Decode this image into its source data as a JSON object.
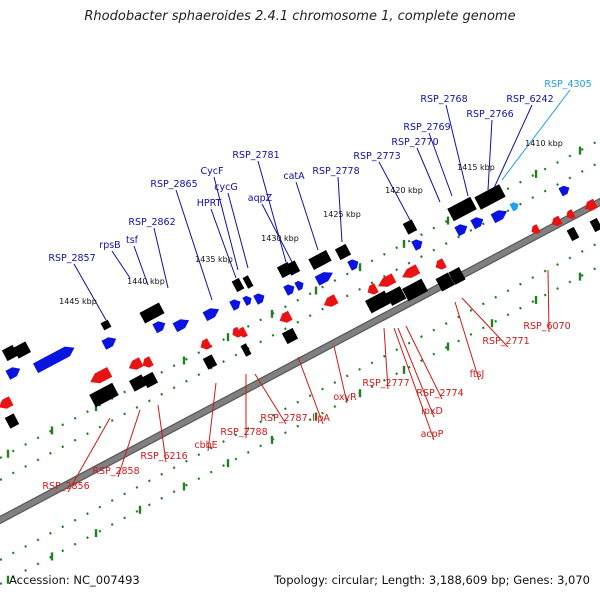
{
  "title": "Rhodobacter sphaeroides 2.4.1 chromosome 1, complete genome",
  "footer": {
    "accession": "Accession: NC_007493",
    "summary": "Topology: circular; Length: 3,188,609 bp; Genes: 3,070"
  },
  "colors": {
    "upper_label": "#1010a8",
    "lower_label": "#d01818",
    "teal_label": "#20a0d8",
    "backbone": "#808080",
    "tick": "#208020",
    "forward_gene": "#0a14e0",
    "reverse_gene": "#e81414"
  },
  "ruler_labels": [
    "1445 kbp",
    "1440 kbp",
    "1435 kbp",
    "1430 kbp",
    "1425 kbp",
    "1420 kbp",
    "1415 kbp",
    "1410 kbp"
  ],
  "upper_genes": [
    "RSP_2857",
    "rpsB",
    "tsf",
    "RSP_2862",
    "RSP_2865",
    "HPRT",
    "CycF",
    "cycG",
    "RSP_2781",
    "aqpZ",
    "catA",
    "RSP_2778",
    "RSP_2773",
    "RSP_2770",
    "RSP_2769",
    "RSP_2768",
    "RSP_2766",
    "RSP_6242",
    "RSP_4305"
  ],
  "lower_genes": [
    "RSP_2856",
    "RSP_2858",
    "RSP_6216",
    "cbbE",
    "RSP_2788",
    "RSP_2787",
    "lipA",
    "oxyR",
    "RSP_2777",
    "lpxD",
    "acpP",
    "RSP_2774",
    "ftsJ",
    "RSP_2771",
    "RSP_6070"
  ]
}
